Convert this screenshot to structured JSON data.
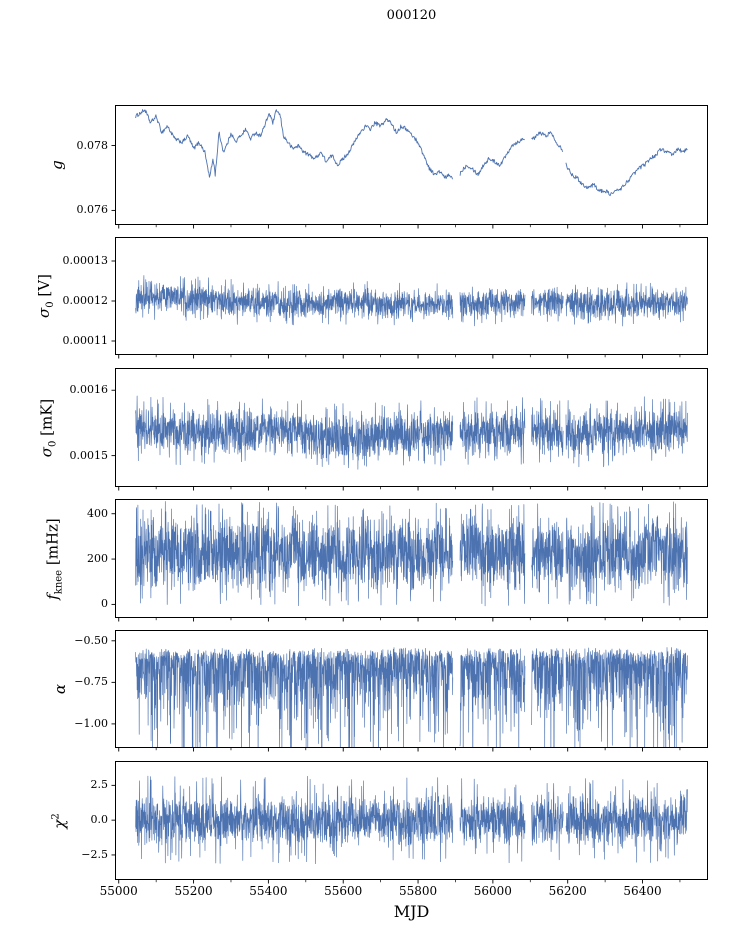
{
  "chart_data": {
    "type": "line",
    "title": "000120",
    "xlabel": "MJD",
    "line_color": "#4c72b0",
    "background": "#ffffff",
    "x": {
      "lim": [
        54990,
        56575
      ],
      "ticks": [
        55000,
        55200,
        55400,
        55600,
        55800,
        56000,
        56200,
        56400
      ],
      "tick_labels": [
        "55000",
        "55200",
        "55400",
        "55600",
        "55800",
        "56000",
        "56200",
        "56400"
      ],
      "minor_step": 100,
      "data_start": 55045,
      "data_end": 56520,
      "gaps": [
        [
          55893,
          55912
        ],
        [
          56086,
          56103
        ],
        [
          56188,
          56195
        ]
      ]
    },
    "panels": [
      {
        "name": "g",
        "ylabel_segments": [
          {
            "t": "g",
            "style": "italic"
          }
        ],
        "ylim": [
          0.07555,
          0.07925
        ],
        "yticks": [
          {
            "v": 0.076,
            "label": "0.076"
          },
          {
            "v": 0.078,
            "label": "0.078"
          }
        ],
        "ylabel_cx": 57,
        "series": {
          "kind": "smooth",
          "n": 950,
          "noise": 6e-05,
          "points": [
            [
              55045,
              0.0789
            ],
            [
              55070,
              0.0791
            ],
            [
              55085,
              0.0787
            ],
            [
              55100,
              0.0789
            ],
            [
              55115,
              0.0784
            ],
            [
              55130,
              0.0786
            ],
            [
              55150,
              0.0782
            ],
            [
              55170,
              0.0781
            ],
            [
              55185,
              0.0783
            ],
            [
              55200,
              0.0779
            ],
            [
              55215,
              0.0781
            ],
            [
              55230,
              0.0778
            ],
            [
              55243,
              0.077
            ],
            [
              55252,
              0.0776
            ],
            [
              55258,
              0.0771
            ],
            [
              55268,
              0.0784
            ],
            [
              55280,
              0.0778
            ],
            [
              55292,
              0.0781
            ],
            [
              55300,
              0.0784
            ],
            [
              55312,
              0.0781
            ],
            [
              55325,
              0.0783
            ],
            [
              55340,
              0.0785
            ],
            [
              55352,
              0.0782
            ],
            [
              55365,
              0.0784
            ],
            [
              55378,
              0.0783
            ],
            [
              55390,
              0.0786
            ],
            [
              55402,
              0.079
            ],
            [
              55412,
              0.0787
            ],
            [
              55422,
              0.0791
            ],
            [
              55432,
              0.0789
            ],
            [
              55440,
              0.0783
            ],
            [
              55452,
              0.0781
            ],
            [
              55465,
              0.0779
            ],
            [
              55480,
              0.078
            ],
            [
              55495,
              0.0778
            ],
            [
              55510,
              0.0777
            ],
            [
              55525,
              0.0776
            ],
            [
              55540,
              0.0778
            ],
            [
              55555,
              0.0775
            ],
            [
              55570,
              0.0777
            ],
            [
              55585,
              0.0774
            ],
            [
              55600,
              0.0776
            ],
            [
              55615,
              0.0778
            ],
            [
              55630,
              0.0781
            ],
            [
              55645,
              0.0784
            ],
            [
              55660,
              0.0786
            ],
            [
              55672,
              0.0785
            ],
            [
              55685,
              0.0787
            ],
            [
              55700,
              0.0786
            ],
            [
              55715,
              0.0788
            ],
            [
              55728,
              0.0787
            ],
            [
              55742,
              0.0784
            ],
            [
              55755,
              0.0786
            ],
            [
              55770,
              0.0785
            ],
            [
              55785,
              0.0783
            ],
            [
              55800,
              0.0781
            ],
            [
              55815,
              0.0777
            ],
            [
              55830,
              0.0773
            ],
            [
              55845,
              0.0771
            ],
            [
              55858,
              0.0772
            ],
            [
              55872,
              0.077
            ],
            [
              55885,
              0.0771
            ],
            [
              55900,
              0.0768
            ],
            [
              55915,
              0.0772
            ],
            [
              55930,
              0.0774
            ],
            [
              55945,
              0.0773
            ],
            [
              55960,
              0.0771
            ],
            [
              55975,
              0.0774
            ],
            [
              55990,
              0.0776
            ],
            [
              56005,
              0.0775
            ],
            [
              56020,
              0.0774
            ],
            [
              56035,
              0.0777
            ],
            [
              56050,
              0.078
            ],
            [
              56065,
              0.0781
            ],
            [
              56080,
              0.0782
            ],
            [
              56095,
              0.0783
            ],
            [
              56110,
              0.0782
            ],
            [
              56125,
              0.0784
            ],
            [
              56140,
              0.0783
            ],
            [
              56155,
              0.0784
            ],
            [
              56170,
              0.0781
            ],
            [
              56185,
              0.0779
            ],
            [
              56200,
              0.0773
            ],
            [
              56212,
              0.0771
            ],
            [
              56225,
              0.077
            ],
            [
              56240,
              0.0768
            ],
            [
              56255,
              0.0767
            ],
            [
              56270,
              0.0768
            ],
            [
              56285,
              0.0766
            ],
            [
              56300,
              0.0766
            ],
            [
              56315,
              0.0765
            ],
            [
              56330,
              0.0766
            ],
            [
              56345,
              0.0767
            ],
            [
              56360,
              0.0769
            ],
            [
              56375,
              0.0771
            ],
            [
              56390,
              0.0773
            ],
            [
              56405,
              0.0774
            ],
            [
              56420,
              0.0776
            ],
            [
              56435,
              0.0777
            ],
            [
              56450,
              0.0779
            ],
            [
              56465,
              0.0778
            ],
            [
              56480,
              0.0777
            ],
            [
              56495,
              0.0779
            ],
            [
              56510,
              0.0778
            ],
            [
              56520,
              0.0779
            ]
          ]
        }
      },
      {
        "name": "sigma0-V",
        "ylabel_segments": [
          {
            "t": "σ",
            "style": "italic"
          },
          {
            "t": "0",
            "style": "sub"
          },
          {
            "t": " [V]",
            "style": "normal"
          }
        ],
        "ylim": [
          0.0001065,
          0.000136
        ],
        "yticks": [
          {
            "v": 0.00011,
            "label": "0.00011"
          },
          {
            "v": 0.00012,
            "label": "0.00012"
          },
          {
            "v": 0.00013,
            "label": "0.00013"
          }
        ],
        "ylabel_cx": 44,
        "series": {
          "kind": "band",
          "n": 2600,
          "half_width": 4.2e-06,
          "dist": "tri",
          "outlier_prob": 0.035,
          "outlier_scale": 0.35,
          "center_points": [
            [
              55045,
              0.0001207
            ],
            [
              55120,
              0.0001212
            ],
            [
              55250,
              0.0001202
            ],
            [
              55350,
              0.0001196
            ],
            [
              55480,
              0.0001192
            ],
            [
              55600,
              0.0001196
            ],
            [
              55700,
              0.0001192
            ],
            [
              55800,
              0.000119
            ],
            [
              55900,
              0.0001192
            ],
            [
              56000,
              0.0001194
            ],
            [
              56100,
              0.0001198
            ],
            [
              56180,
              0.00012
            ],
            [
              56260,
              0.000119
            ],
            [
              56350,
              0.0001192
            ],
            [
              56450,
              0.0001196
            ],
            [
              56520,
              0.0001198
            ]
          ]
        }
      },
      {
        "name": "sigma0-mK",
        "ylabel_segments": [
          {
            "t": "σ",
            "style": "italic"
          },
          {
            "t": "0",
            "style": "sub"
          },
          {
            "t": " [mK]",
            "style": "normal"
          }
        ],
        "ylim": [
          0.001452,
          0.001634
        ],
        "yticks": [
          {
            "v": 0.0015,
            "label": "0.0015"
          },
          {
            "v": 0.0016,
            "label": "0.0016"
          }
        ],
        "ylabel_cx": 46,
        "series": {
          "kind": "band",
          "n": 2600,
          "half_width": 4e-05,
          "dist": "tri",
          "outlier_prob": 0.04,
          "outlier_scale": 0.3,
          "center_points": [
            [
              55045,
              0.001542
            ],
            [
              55150,
              0.001537
            ],
            [
              55300,
              0.001534
            ],
            [
              55420,
              0.001539
            ],
            [
              55520,
              0.00153
            ],
            [
              55620,
              0.001527
            ],
            [
              55720,
              0.001532
            ],
            [
              55820,
              0.001534
            ],
            [
              55920,
              0.001536
            ],
            [
              56050,
              0.001539
            ],
            [
              56150,
              0.001536
            ],
            [
              56250,
              0.001533
            ],
            [
              56350,
              0.001537
            ],
            [
              56450,
              0.001539
            ],
            [
              56520,
              0.001541
            ]
          ]
        }
      },
      {
        "name": "fknee",
        "ylabel_segments": [
          {
            "t": "f",
            "style": "italic"
          },
          {
            "t": "knee",
            "style": "sub"
          },
          {
            "t": " [mHz]",
            "style": "normal"
          }
        ],
        "ylim": [
          -60,
          465
        ],
        "yticks": [
          {
            "v": 0,
            "label": "0"
          },
          {
            "v": 200,
            "label": "200"
          },
          {
            "v": 400,
            "label": "400"
          }
        ],
        "ylabel_cx": 52,
        "series": {
          "kind": "band",
          "n": 2600,
          "half_width": 185,
          "dist": "mix",
          "outlier_prob": 0.05,
          "outlier_scale": 0.25,
          "center_points": [
            [
              55045,
              225
            ],
            [
              55400,
              220
            ],
            [
              55800,
              225
            ],
            [
              56200,
              220
            ],
            [
              56520,
              225
            ]
          ]
        }
      },
      {
        "name": "alpha",
        "ylabel_segments": [
          {
            "t": "α",
            "style": "italic"
          }
        ],
        "ylim": [
          -1.145,
          -0.435
        ],
        "yticks": [
          {
            "v": -0.5,
            "label": "−0.50"
          },
          {
            "v": -0.75,
            "label": "−0.75"
          },
          {
            "v": -1.0,
            "label": "−1.00"
          }
        ],
        "ylabel_cx": 60,
        "series": {
          "kind": "asym",
          "n": 2600,
          "depth": 0.42,
          "spike_prob": 0.13,
          "spike_extra": 0.55,
          "jitter": 0.05,
          "top_points": [
            [
              55045,
              -0.565
            ],
            [
              55400,
              -0.572
            ],
            [
              55800,
              -0.562
            ],
            [
              56100,
              -0.568
            ],
            [
              56520,
              -0.563
            ]
          ]
        }
      },
      {
        "name": "chi2",
        "ylabel_segments": [
          {
            "t": "χ",
            "style": "italic"
          },
          {
            "t": "2",
            "style": "sup"
          }
        ],
        "ylim": [
          -4.3,
          4.25
        ],
        "yticks": [
          {
            "v": 2.5,
            "label": "2.5"
          },
          {
            "v": 0.0,
            "label": "0.0"
          },
          {
            "v": -2.5,
            "label": "−2.5"
          }
        ],
        "ylabel_cx": 56,
        "series": {
          "kind": "band",
          "n": 2600,
          "half_width": 2.05,
          "dist": "tri",
          "outlier_prob": 0.05,
          "outlier_scale": 0.55,
          "center_points": [
            [
              55045,
              0
            ],
            [
              56520,
              0
            ]
          ]
        }
      }
    ]
  }
}
